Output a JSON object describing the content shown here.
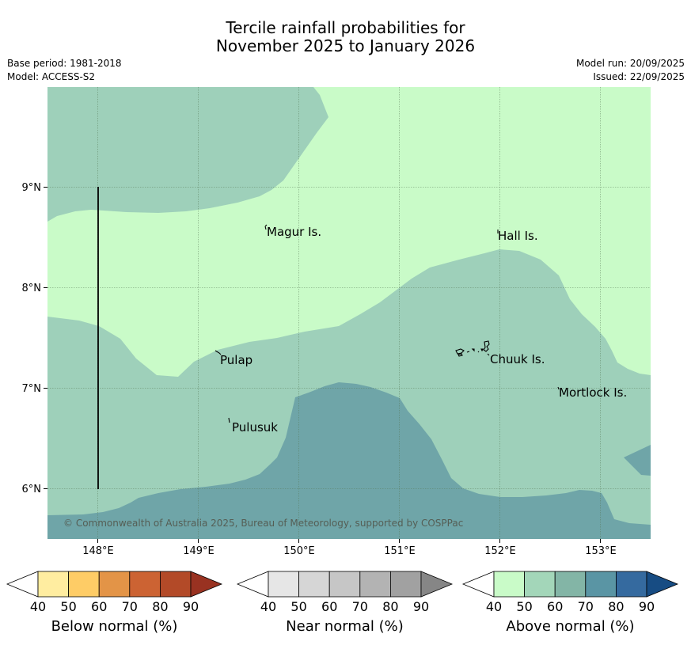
{
  "title": {
    "line1": "Tercile rainfall probabilities for",
    "line2": "November 2025 to January 2026"
  },
  "meta": {
    "base_period": "Base period: 1981-2018",
    "model": "Model: ACCESS-S2",
    "model_run": "Model run: 20/09/2025",
    "issued": "Issued: 22/09/2025"
  },
  "map": {
    "lon_ticks": [
      "148°E",
      "149°E",
      "150°E",
      "151°E",
      "152°E",
      "153°E"
    ],
    "lat_ticks": [
      "9°N",
      "8°N",
      "7°N",
      "6°N"
    ],
    "places": [
      "Magur Is.",
      "Hall Is.",
      "Pulap",
      "Chuuk Is.",
      "Mortlock Is.",
      "Pulusuk"
    ],
    "copyright": "© Commonwealth of Australia 2025, Bureau of Meteorology, supported by COSPPac",
    "colors": {
      "above_40": "#c9fbc8",
      "above_50": "#9ed0ba",
      "above_60": "#6fa5a8"
    }
  },
  "colorbars": [
    {
      "title": "Below normal (%)",
      "labels": [
        "40",
        "50",
        "60",
        "70",
        "80",
        "90"
      ],
      "colors": [
        "#ffffff",
        "#ffeda0",
        "#fecc66",
        "#e39447",
        "#cc6333",
        "#b34a28",
        "#993221"
      ]
    },
    {
      "title": "Near normal (%)",
      "labels": [
        "40",
        "50",
        "60",
        "70",
        "80",
        "90"
      ],
      "colors": [
        "#ffffff",
        "#e6e6e6",
        "#d6d6d6",
        "#c6c6c6",
        "#b3b3b3",
        "#a1a1a1",
        "#868686"
      ]
    },
    {
      "title": "Above normal (%)",
      "labels": [
        "40",
        "50",
        "60",
        "70",
        "80",
        "90"
      ],
      "colors": [
        "#ffffff",
        "#c9fbc8",
        "#a3d6b9",
        "#83b5a6",
        "#5a95a4",
        "#356a9f",
        "#174c83"
      ]
    }
  ]
}
